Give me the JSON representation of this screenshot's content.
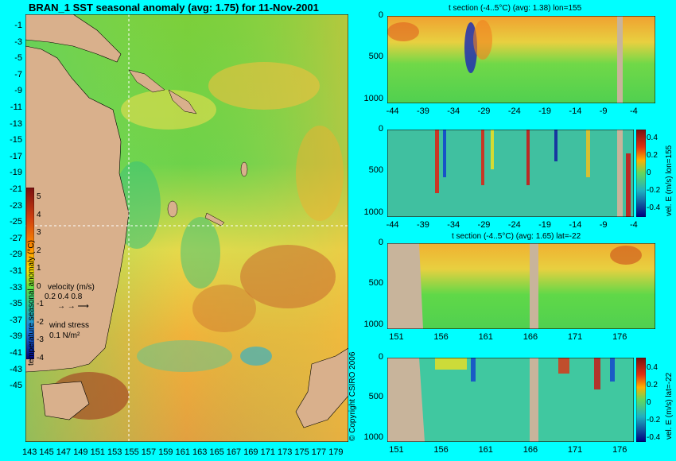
{
  "map": {
    "title": "BRAN_1 SST seasonal anomaly (avg: 1.75) for 11-Nov-2001",
    "lat_ticks": [
      "-1",
      "-3",
      "-5",
      "-7",
      "-9",
      "-11",
      "-13",
      "-15",
      "-17",
      "-19",
      "-21",
      "-23",
      "-25",
      "-27",
      "-29",
      "-31",
      "-33",
      "-35",
      "-37",
      "-39",
      "-41",
      "-43",
      "-45"
    ],
    "lon_ticks": [
      "143",
      "145",
      "147",
      "149",
      "151",
      "153",
      "155",
      "157",
      "159",
      "161",
      "163",
      "165",
      "167",
      "169",
      "171",
      "173",
      "175",
      "177",
      "179"
    ],
    "colorbar": {
      "label": "temperature seasonal anomaly (°C)",
      "ticks": [
        "5",
        "4",
        "3",
        "2",
        "1",
        "0",
        "-1",
        "-2",
        "-3",
        "-4"
      ]
    },
    "legend": {
      "velocity_label": "velocity (m/s)",
      "velocity_values": "0.2 0.4 0.8",
      "wind_label": "wind stress",
      "wind_value": "0.1 N/m²"
    },
    "copyright": "© Copyright CSIRO 2006"
  },
  "chart_data": [
    {
      "type": "heatmap",
      "title": "BRAN_1 SST seasonal anomaly (avg: 1.75) for 11-Nov-2001",
      "xlim": [
        143,
        180
      ],
      "ylim": [
        -45,
        0
      ],
      "colorbar_range": [
        -4,
        5
      ]
    },
    {
      "type": "heatmap",
      "title": "t section (-4..5°C) (avg: 1.38) lon=155",
      "x_ticks": [
        "-44",
        "-39",
        "-34",
        "-29",
        "-24",
        "-19",
        "-14",
        "-9",
        "-4"
      ],
      "y_ticks": [
        "0",
        "500",
        "1000"
      ],
      "xlim": [
        -45,
        -1
      ],
      "ylim": [
        1050,
        0
      ]
    },
    {
      "type": "heatmap",
      "x_ticks": [
        "-44",
        "-39",
        "-34",
        "-29",
        "-24",
        "-19",
        "-14",
        "-9",
        "-4"
      ],
      "y_ticks": [
        "0",
        "500",
        "1000"
      ],
      "colorbar_label": "vel. E (m/s) lon=155",
      "colorbar_ticks": [
        "0.4",
        "0.2",
        "0",
        "-0.2",
        "-0.4"
      ],
      "xlim": [
        -45,
        -1
      ],
      "ylim": [
        1050,
        0
      ]
    },
    {
      "type": "heatmap",
      "title": "t section (-4..5°C) (avg: 1.65) lat=-22",
      "x_ticks": [
        "151",
        "156",
        "161",
        "166",
        "171",
        "176"
      ],
      "y_ticks": [
        "0",
        "500",
        "1000"
      ],
      "xlim": [
        150,
        180
      ],
      "ylim": [
        1050,
        0
      ]
    },
    {
      "type": "heatmap",
      "x_ticks": [
        "151",
        "156",
        "161",
        "166",
        "171",
        "176"
      ],
      "y_ticks": [
        "0",
        "500",
        "1000"
      ],
      "colorbar_label": "vel. E (m/s) lat=-22",
      "colorbar_ticks": [
        "0.4",
        "0.2",
        "0",
        "-0.2",
        "-0.4"
      ],
      "xlim": [
        150,
        180
      ],
      "ylim": [
        1050,
        0
      ]
    }
  ],
  "colors": {
    "background": "#00ffff",
    "land": "#d9b08c",
    "section_land": "#c8b49b",
    "gridline": "#ffffff"
  }
}
